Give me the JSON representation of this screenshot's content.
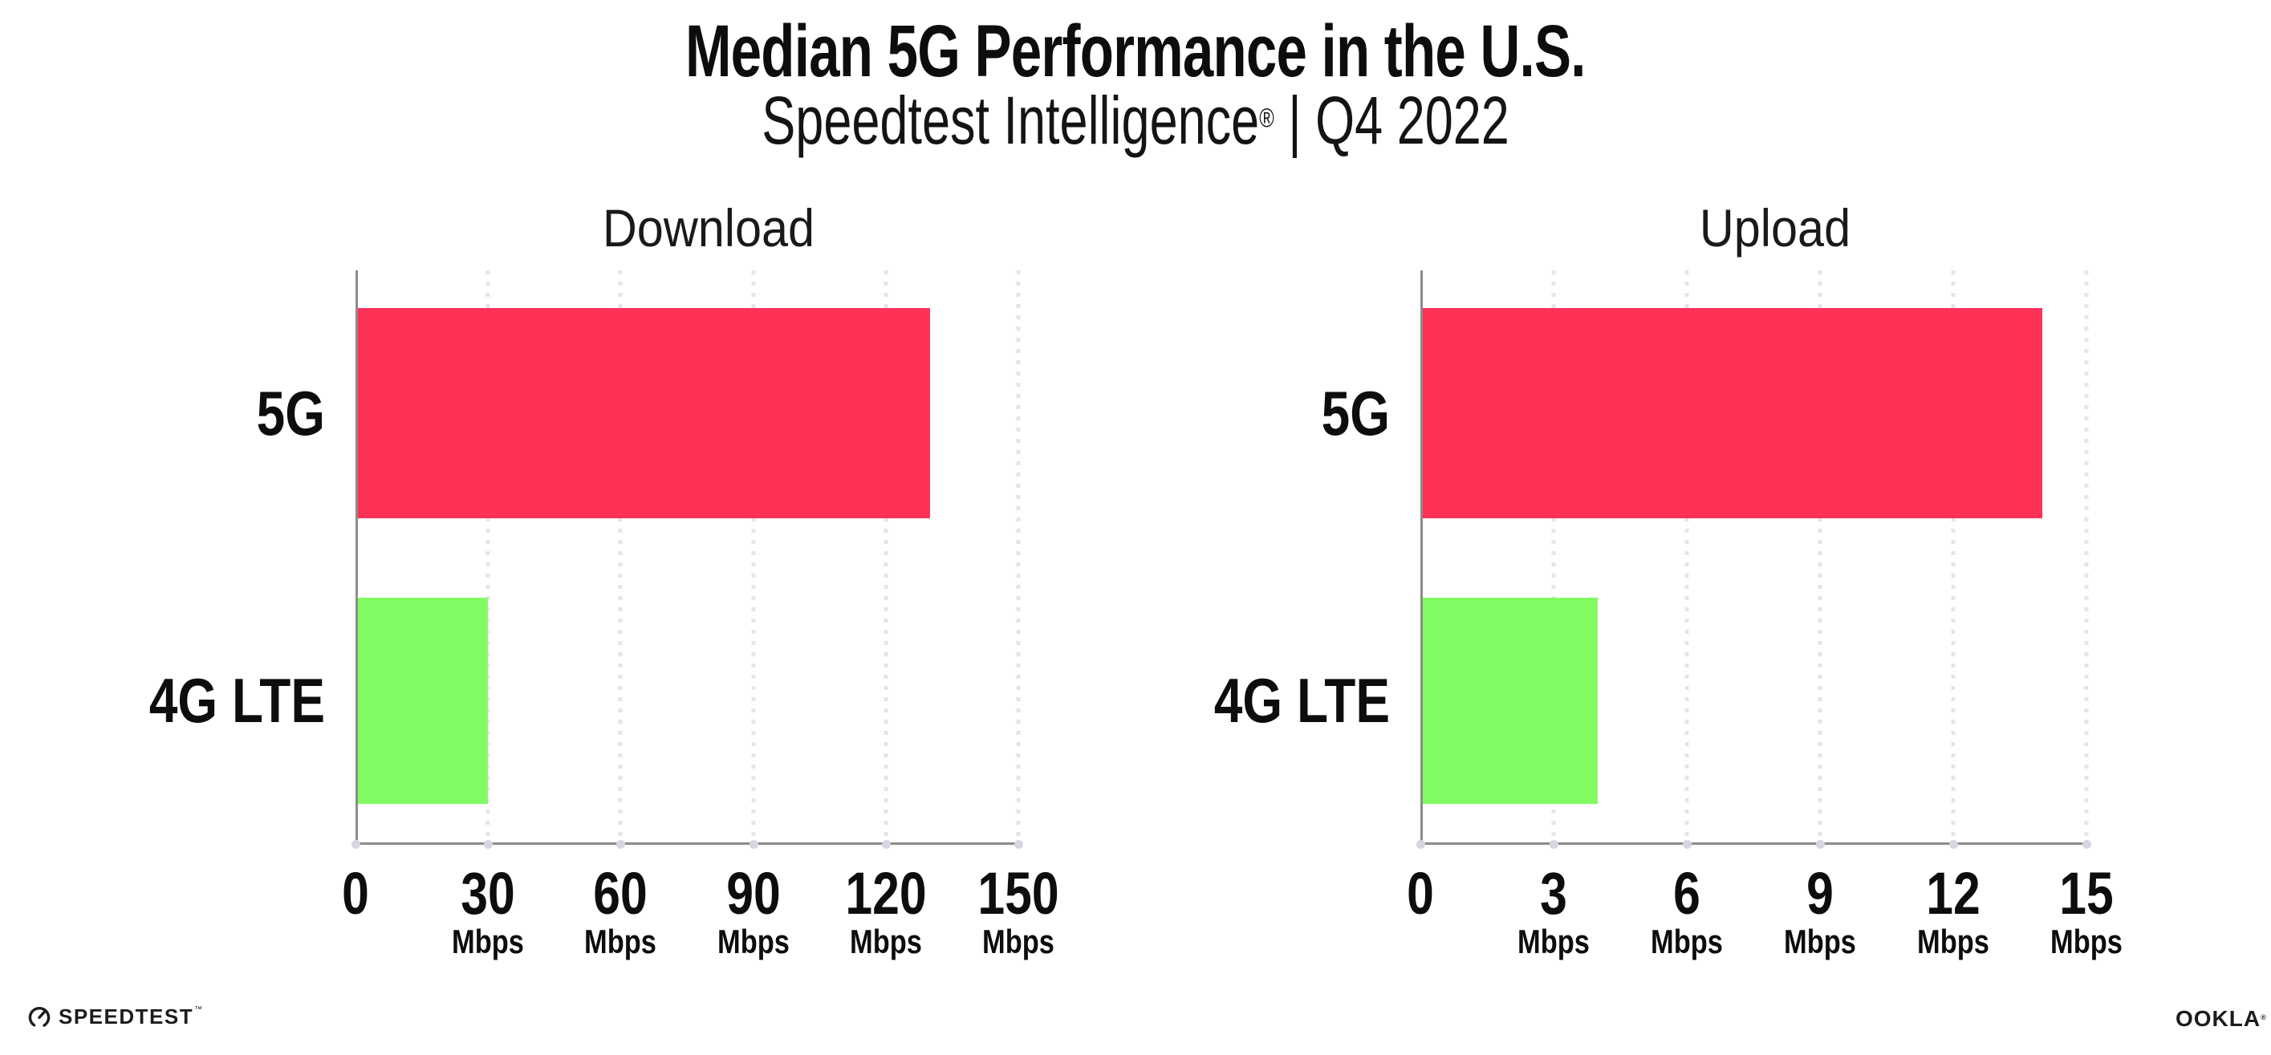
{
  "header": {
    "title": "Median 5G Performance in the U.S.",
    "subtitle_product": "Speedtest Intelligence",
    "subtitle_registered": "®",
    "subtitle_period": " | Q4 2022"
  },
  "chart_data": [
    {
      "type": "bar",
      "orientation": "horizontal",
      "title": "Download",
      "categories": [
        "5G",
        "4G LTE"
      ],
      "series": [
        {
          "name": "5G",
          "value": 130,
          "color": "#fe3156"
        },
        {
          "name": "4G LTE",
          "value": 30,
          "color": "#82fb63"
        }
      ],
      "unit": "Mbps",
      "xmin": 0,
      "xmax": 150,
      "ticks": [
        {
          "value": 0,
          "label": "0",
          "unit": ""
        },
        {
          "value": 30,
          "label": "30",
          "unit": "Mbps"
        },
        {
          "value": 60,
          "label": "60",
          "unit": "Mbps"
        },
        {
          "value": 90,
          "label": "90",
          "unit": "Mbps"
        },
        {
          "value": 120,
          "label": "120",
          "unit": "Mbps"
        },
        {
          "value": 150,
          "label": "150",
          "unit": "Mbps"
        }
      ],
      "grid": "dotted-vertical",
      "legend": "none"
    },
    {
      "type": "bar",
      "orientation": "horizontal",
      "title": "Upload",
      "categories": [
        "5G",
        "4G LTE"
      ],
      "series": [
        {
          "name": "5G",
          "value": 14,
          "color": "#fe3156"
        },
        {
          "name": "4G LTE",
          "value": 4,
          "color": "#82fb63"
        }
      ],
      "unit": "Mbps",
      "xmin": 0,
      "xmax": 15,
      "ticks": [
        {
          "value": 0,
          "label": "0",
          "unit": ""
        },
        {
          "value": 3,
          "label": "3",
          "unit": "Mbps"
        },
        {
          "value": 6,
          "label": "6",
          "unit": "Mbps"
        },
        {
          "value": 9,
          "label": "9",
          "unit": "Mbps"
        },
        {
          "value": 12,
          "label": "12",
          "unit": "Mbps"
        },
        {
          "value": 15,
          "label": "15",
          "unit": "Mbps"
        }
      ],
      "grid": "dotted-vertical",
      "legend": "none"
    }
  ],
  "footer": {
    "speedtest_wordmark": "SPEEDTEST",
    "speedtest_trademark": "™",
    "ookla_wordmark": "OOKLA",
    "ookla_registered": "®"
  },
  "colors": {
    "bar_5g": "#fe3156",
    "bar_4g_lte": "#82fb63",
    "axis": "#8c8c8c",
    "gridline": "#e4e4ee",
    "tick_dot": "#d6d6e2",
    "text": "#111111",
    "background": "#ffffff"
  }
}
